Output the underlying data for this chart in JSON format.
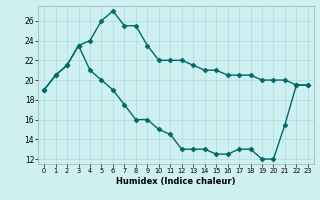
{
  "xlabel": "Humidex (Indice chaleur)",
  "line1_x": [
    0,
    1,
    2,
    3,
    4,
    5,
    6,
    7,
    8,
    9,
    10,
    11,
    12,
    13,
    14,
    15,
    16,
    17,
    18,
    19,
    20,
    21,
    22,
    23
  ],
  "line1_y": [
    19,
    20.5,
    21.5,
    23.5,
    24,
    26,
    27,
    25.5,
    25.5,
    23.5,
    22,
    22,
    22,
    21.5,
    21,
    21,
    20.5,
    20.5,
    20.5,
    20,
    20,
    20,
    19.5,
    19.5
  ],
  "line2_x": [
    0,
    1,
    2,
    3,
    4,
    5,
    6,
    7,
    8,
    9,
    10,
    11,
    12,
    13,
    14,
    15,
    16,
    17,
    18,
    19,
    20,
    21,
    22,
    23
  ],
  "line2_y": [
    19,
    20.5,
    21.5,
    23.5,
    21,
    20,
    19,
    17.5,
    16,
    16,
    15,
    14.5,
    13,
    13,
    13,
    12.5,
    12.5,
    13,
    13,
    12,
    12,
    15.5,
    19.5,
    19.5
  ],
  "color": "#006868",
  "bg_color": "#cff0f0",
  "grid_major_color": "#aadddd",
  "grid_minor_color": "#c8ecec",
  "ylim": [
    11.5,
    27.5
  ],
  "xlim": [
    -0.5,
    23.5
  ],
  "yticks": [
    12,
    14,
    16,
    18,
    20,
    22,
    24,
    26
  ],
  "xticks": [
    0,
    1,
    2,
    3,
    4,
    5,
    6,
    7,
    8,
    9,
    10,
    11,
    12,
    13,
    14,
    15,
    16,
    17,
    18,
    19,
    20,
    21,
    22,
    23
  ]
}
